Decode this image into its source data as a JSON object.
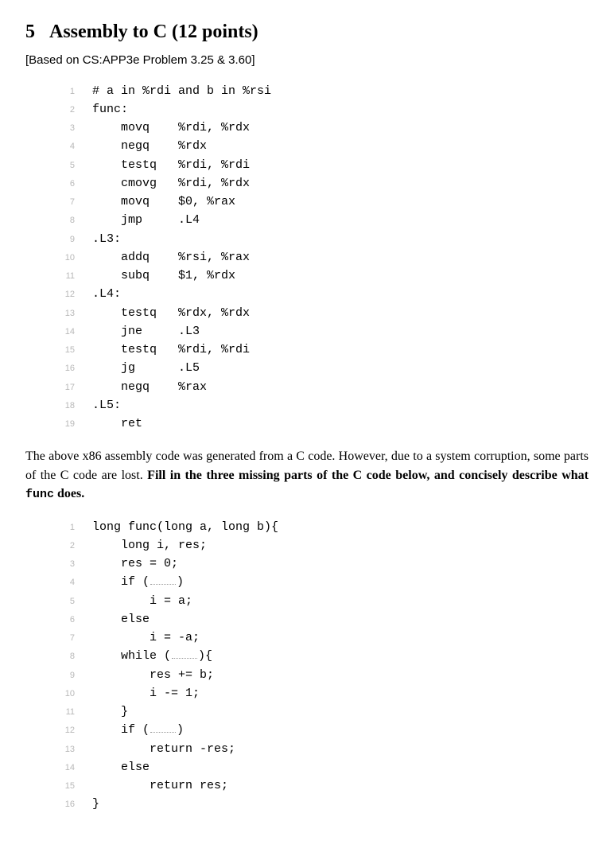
{
  "heading": {
    "number": "5",
    "title": "Assembly to C (12 points)"
  },
  "subhead": "[Based on CS:APP3e Problem 3.25 & 3.60]",
  "asm": {
    "lines": [
      "# a in %rdi and b in %rsi",
      "func:",
      "    movq    %rdi, %rdx",
      "    negq    %rdx",
      "    testq   %rdi, %rdi",
      "    cmovg   %rdi, %rdx",
      "    movq    $0, %rax",
      "    jmp     .L4",
      ".L3:",
      "    addq    %rsi, %rax",
      "    subq    $1, %rdx",
      ".L4:",
      "    testq   %rdx, %rdx",
      "    jne     .L3",
      "    testq   %rdi, %rdi",
      "    jg      .L5",
      "    negq    %rax",
      ".L5:",
      "    ret"
    ]
  },
  "paragraph": {
    "pre": "The above x86 assembly code was generated from a C code. However, due to a system corruption, some parts of the C code are lost. ",
    "bold1": "Fill in the three missing parts of the C code below, and concisely describe what ",
    "tt": "func",
    "bold2": " does."
  },
  "ccode": {
    "lines": [
      {
        "t": "long func(long a, long b){"
      },
      {
        "t": "    long i, res;"
      },
      {
        "t": "    res = 0;"
      },
      {
        "t": "    if (",
        "blank": true,
        "after": ")"
      },
      {
        "t": "        i = a;"
      },
      {
        "t": "    else"
      },
      {
        "t": "        i = -a;"
      },
      {
        "t": "    while (",
        "blank": true,
        "after": "){"
      },
      {
        "t": "        res += b;"
      },
      {
        "t": "        i -= 1;"
      },
      {
        "t": "    }"
      },
      {
        "t": "    if (",
        "blank": true,
        "after": ")"
      },
      {
        "t": "        return -res;"
      },
      {
        "t": "    else"
      },
      {
        "t": "        return res;"
      },
      {
        "t": "}"
      }
    ]
  }
}
